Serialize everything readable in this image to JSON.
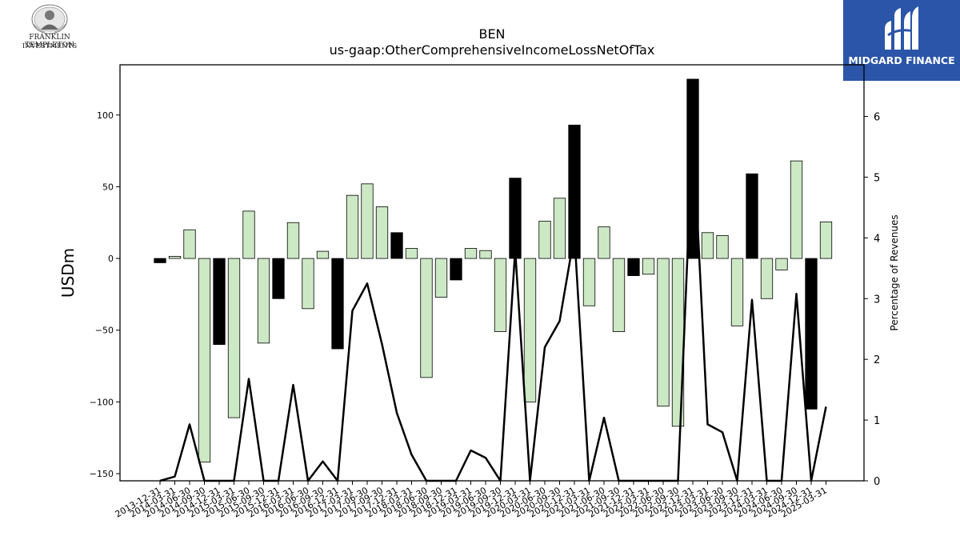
{
  "logos": {
    "left": {
      "line1": "FRANKLIN TEMPLETON",
      "line2": "INVESTMENTS"
    },
    "right": {
      "name": "MIDGARD FINANCE"
    }
  },
  "chart_data": {
    "type": "bar",
    "title": "BEN",
    "subtitle": "us-gaap:OtherComprehensiveIncomeLossNetOfTax",
    "ylabel": "USDm",
    "y2label": "Percentage of Revenues",
    "ylim": [
      -155,
      135
    ],
    "y2lim": [
      0,
      6.85
    ],
    "yticks": [
      -150,
      -100,
      -50,
      0,
      50,
      100
    ],
    "y2ticks": [
      0,
      1,
      2,
      3,
      4,
      5,
      6
    ],
    "categories": [
      "2013-12-31",
      "2014-03-31",
      "2014-06-30",
      "2014-09-30",
      "2014-12-31",
      "2015-03-31",
      "2015-06-30",
      "2015-09-30",
      "2015-12-31",
      "2016-03-31",
      "2016-06-30",
      "2016-09-30",
      "2016-12-31",
      "2017-03-31",
      "2017-06-30",
      "2017-09-30",
      "2017-12-31",
      "2018-03-31",
      "2018-06-30",
      "2018-09-30",
      "2018-12-31",
      "2019-03-31",
      "2019-06-30",
      "2019-09-30",
      "2019-12-31",
      "2020-03-31",
      "2020-06-30",
      "2020-09-30",
      "2020-12-31",
      "2021-03-31",
      "2021-06-30",
      "2021-09-30",
      "2021-12-31",
      "2022-03-31",
      "2022-06-30",
      "2022-09-30",
      "2022-12-31",
      "2023-03-31",
      "2023-06-30",
      "2023-09-30",
      "2023-12-31",
      "2024-03-31",
      "2024-06-30",
      "2024-09-30",
      "2024-12-31",
      "2025-03-31"
    ],
    "series": [
      {
        "kind": "bar",
        "values": [
          -3,
          1.5,
          20,
          -142,
          -60,
          -111,
          33,
          -59,
          -28,
          25,
          -35,
          5,
          -63,
          44,
          52,
          36,
          18,
          7,
          -83,
          -27,
          -15,
          7,
          5.5,
          -51,
          56,
          -100,
          26,
          42,
          93,
          -33,
          22,
          -51,
          -12,
          -11,
          -103,
          -117,
          125,
          18,
          16,
          -47,
          59,
          -28,
          -8,
          68,
          -105,
          25.5
        ],
        "highlight": [
          true,
          false,
          false,
          false,
          true,
          false,
          false,
          false,
          true,
          false,
          false,
          false,
          true,
          false,
          false,
          false,
          true,
          false,
          false,
          false,
          true,
          false,
          false,
          false,
          true,
          false,
          false,
          false,
          true,
          false,
          false,
          false,
          true,
          false,
          false,
          false,
          true,
          false,
          false,
          false,
          true,
          false,
          false,
          false,
          true,
          false
        ]
      },
      {
        "kind": "line",
        "axis": "right",
        "values": [
          0,
          0.07,
          0.93,
          0,
          0,
          0,
          1.68,
          0,
          0,
          1.58,
          0,
          0.32,
          0,
          2.8,
          3.25,
          2.25,
          1.12,
          0.43,
          0,
          0,
          0,
          0.5,
          0.38,
          0,
          3.8,
          0,
          2.2,
          2.63,
          4.05,
          0,
          1.04,
          0,
          0,
          0,
          0,
          0,
          5.8,
          0.93,
          0.8,
          0,
          2.98,
          0,
          0,
          3.08,
          0,
          1.22
        ]
      }
    ],
    "colors": {
      "bar": "#cce8c5",
      "bar_highlight": "#000000",
      "line": "#000000",
      "brand_blue": "#2a55a8"
    }
  }
}
